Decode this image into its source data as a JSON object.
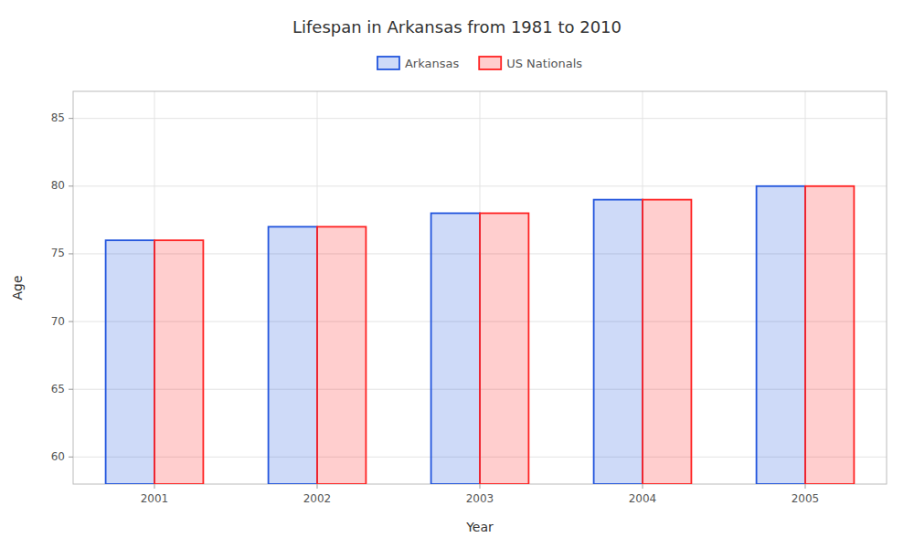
{
  "chart_data": {
    "type": "bar",
    "title": "Lifespan in Arkansas from 1981 to 2010",
    "x_label": "Year",
    "y_label": "Age",
    "categories": [
      "2001",
      "2002",
      "2003",
      "2004",
      "2005"
    ],
    "series": [
      {
        "name": "Arkansas",
        "color": "#2255dd",
        "values": [
          76,
          77,
          78,
          79,
          80
        ]
      },
      {
        "name": "US Nationals",
        "color": "#ff2222",
        "values": [
          76,
          77,
          78,
          79,
          80
        ]
      }
    ],
    "ylim": [
      58,
      87
    ],
    "yticks": [
      60,
      65,
      70,
      75,
      80,
      85
    ],
    "grid": true,
    "legend": "top"
  }
}
